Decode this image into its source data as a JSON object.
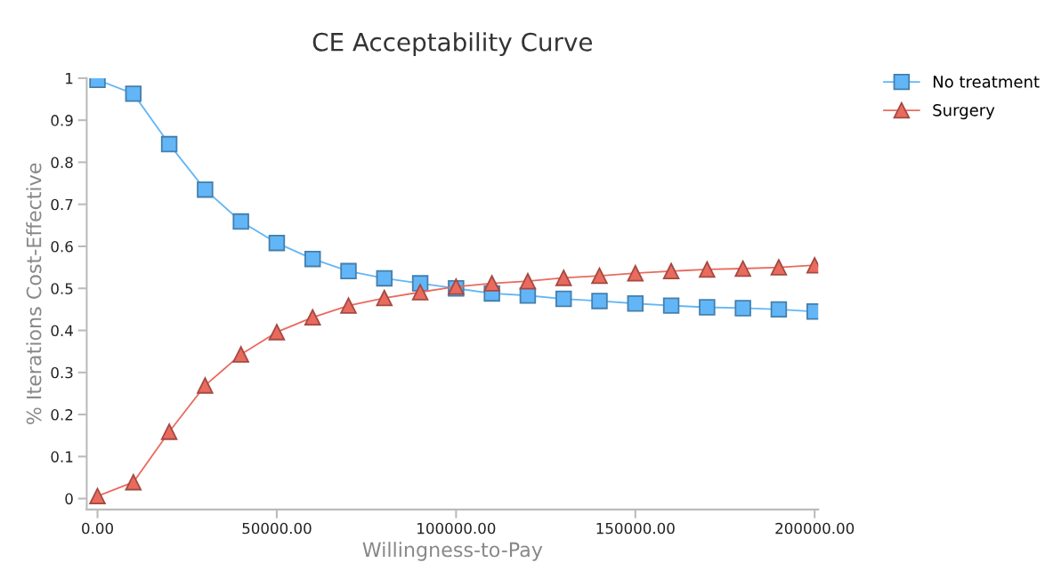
{
  "chart_data": {
    "type": "line",
    "title": "CE Acceptability Curve",
    "xlabel": "Willingness-to-Pay",
    "ylabel": "% Iterations Cost-Effective",
    "x": [
      0,
      10000,
      20000,
      30000,
      40000,
      50000,
      60000,
      70000,
      80000,
      90000,
      100000,
      110000,
      120000,
      130000,
      140000,
      150000,
      160000,
      170000,
      180000,
      190000,
      200000
    ],
    "series": [
      {
        "name": "No treatment",
        "color": "#62b6f7",
        "marker": "square",
        "values": [
          0.996,
          0.963,
          0.843,
          0.735,
          0.659,
          0.608,
          0.57,
          0.541,
          0.524,
          0.512,
          0.5,
          0.488,
          0.483,
          0.475,
          0.47,
          0.464,
          0.459,
          0.455,
          0.453,
          0.45,
          0.445
        ]
      },
      {
        "name": "Surgery",
        "color": "#ea6a5e",
        "marker": "triangle",
        "values": [
          0.006,
          0.039,
          0.159,
          0.269,
          0.343,
          0.396,
          0.431,
          0.459,
          0.477,
          0.491,
          0.504,
          0.512,
          0.517,
          0.525,
          0.53,
          0.536,
          0.541,
          0.545,
          0.547,
          0.55,
          0.555
        ]
      }
    ],
    "xlim": [
      -3000,
      201000
    ],
    "ylim": [
      -0.026,
      1.0
    ],
    "xticks": [
      {
        "value": 0,
        "label": "0.00"
      },
      {
        "value": 50000,
        "label": "50000.00"
      },
      {
        "value": 100000,
        "label": "100000.00"
      },
      {
        "value": 150000,
        "label": "150000.00"
      },
      {
        "value": 200000,
        "label": "200000.00"
      }
    ],
    "yticks": [
      0,
      0.1,
      0.2,
      0.3,
      0.4,
      0.5,
      0.6,
      0.7,
      0.8,
      0.9,
      1
    ],
    "grid": false,
    "legend": "top right",
    "line_style": "solid"
  }
}
